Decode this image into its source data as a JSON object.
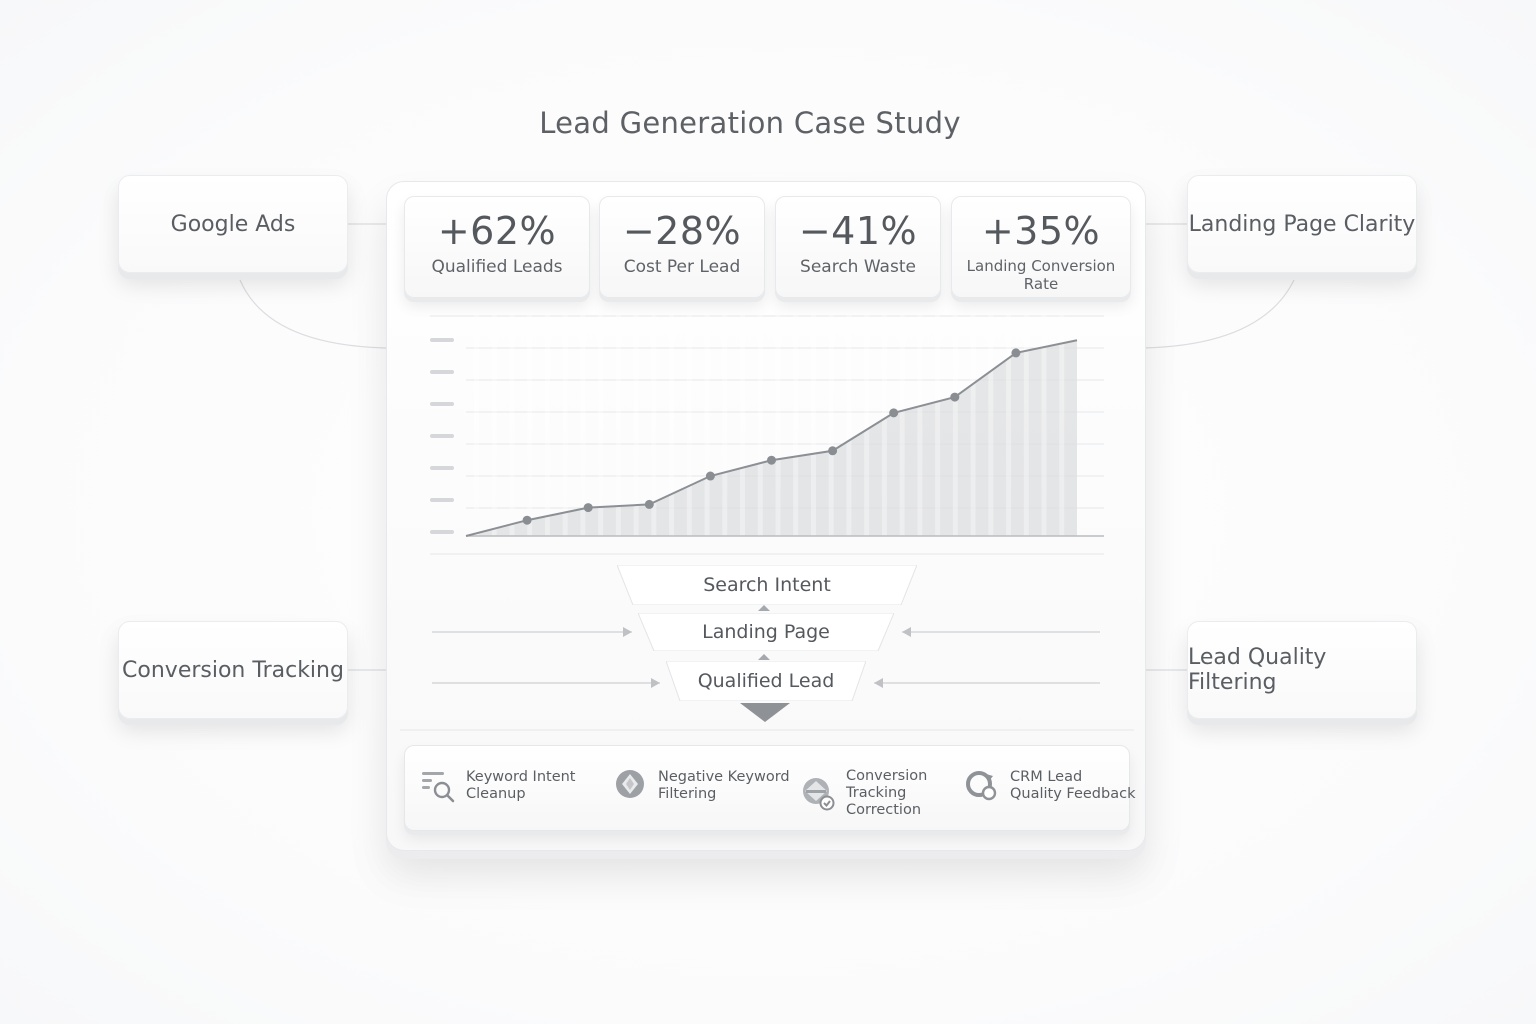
{
  "title": "Lead Generation Case Study",
  "side_cards": {
    "top_left": "Google Ads",
    "top_right": "Landing Page Clarity",
    "bottom_left": "Conversion Tracking",
    "bottom_right": "Lead Quality Filtering"
  },
  "kpis": [
    {
      "value": "+62%",
      "label": "Qualified Leads"
    },
    {
      "value": "−28%",
      "label": "Cost Per Lead"
    },
    {
      "value": "−41%",
      "label": "Search Waste"
    },
    {
      "value": "+35%",
      "label": "Landing Conversion Rate"
    }
  ],
  "funnel": {
    "stages": [
      "Search Intent",
      "Landing Page",
      "Qualified Lead"
    ]
  },
  "tactics": [
    {
      "label": "Keyword Intent\nCleanup",
      "icon": "keyword-search-icon"
    },
    {
      "label": "Negative Keyword\nFiltering",
      "icon": "shield-icon"
    },
    {
      "label": "Conversion\nTracking\nCorrection",
      "icon": "tracking-check-icon"
    },
    {
      "label": "CRM Lead\nQuality Feedback",
      "icon": "feedback-loop-icon"
    }
  ],
  "chart_data": {
    "type": "line",
    "title": "",
    "xlabel": "",
    "ylabel": "",
    "grid": true,
    "ylim": [
      0,
      7
    ],
    "x": [
      0,
      1,
      2,
      3,
      4,
      5,
      6,
      7,
      8,
      9,
      10
    ],
    "series": [
      {
        "values": [
          0.0,
          0.5,
          0.9,
          1.0,
          1.9,
          2.4,
          2.7,
          3.9,
          4.4,
          5.8,
          6.2
        ]
      }
    ],
    "markers_at": [
      1,
      2,
      3,
      4,
      5,
      6,
      7,
      8,
      9
    ],
    "colors": {
      "line": "#8c9095",
      "area": "#dcdddf",
      "grid": "#e6e7e9"
    }
  }
}
